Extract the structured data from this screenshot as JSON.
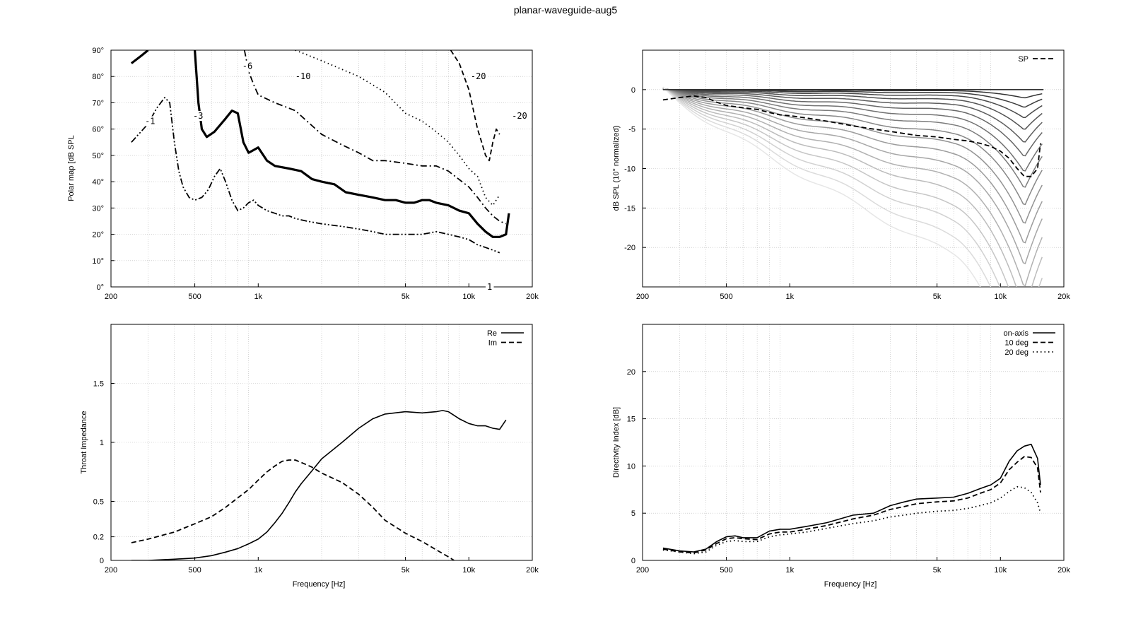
{
  "title": "planar-waveguide-aug5",
  "x_ticks": [
    "200",
    "500",
    "1k",
    "5k",
    "10k",
    "20k"
  ],
  "x_tick_values": [
    200,
    500,
    1000,
    5000,
    10000,
    20000
  ],
  "chart_data": [
    {
      "id": "polar-map",
      "type": "line",
      "ylabel": "Polar map [dB SPL",
      "xlabel": "",
      "xscale": "log",
      "xlim": [
        200,
        20000
      ],
      "ylim": [
        0,
        90
      ],
      "y_ticks": [
        "0°",
        "10°",
        "20°",
        "30°",
        "40°",
        "50°",
        "60°",
        "70°",
        "80°",
        "90°"
      ],
      "y_tick_values": [
        0,
        10,
        20,
        30,
        40,
        50,
        60,
        70,
        80,
        90
      ],
      "grid": true,
      "contour_labels": [
        {
          "text": "-1",
          "x": 290,
          "y": 63
        },
        {
          "text": "-3",
          "x": 490,
          "y": 65
        },
        {
          "text": "-6",
          "x": 840,
          "y": 84
        },
        {
          "text": "-10",
          "x": 1500,
          "y": 80
        },
        {
          "text": "-20",
          "x": 10200,
          "y": 80
        },
        {
          "text": "-20",
          "x": 16000,
          "y": 65
        },
        {
          "text": "1",
          "x": 12200,
          "y": 0
        }
      ],
      "series": [
        {
          "style": "solid-thick",
          "x": [
            250,
            280,
            300
          ],
          "y": [
            85,
            88,
            90
          ]
        },
        {
          "style": "solid-thick",
          "x": [
            500,
            520,
            540,
            570,
            620,
            700,
            750,
            800,
            850,
            900,
            950,
            1000,
            1100,
            1200,
            1400,
            1600,
            1800,
            2000,
            2300,
            2600,
            3000,
            3500,
            4000,
            4500,
            5000,
            5500,
            6000,
            6500,
            7000,
            8000,
            9000,
            10000,
            11000,
            12000,
            13000,
            14000,
            15000,
            15500
          ],
          "y": [
            90,
            70,
            60,
            57,
            59,
            64,
            67,
            66,
            55,
            51,
            52,
            53,
            48,
            46,
            45,
            44,
            41,
            40,
            39,
            36,
            35,
            34,
            33,
            33,
            32,
            32,
            33,
            33,
            32,
            31,
            29,
            28,
            24,
            21,
            19,
            19,
            20,
            28
          ]
        },
        {
          "style": "dashdot",
          "x": [
            860,
            900,
            950,
            1000,
            1200,
            1500,
            2000,
            2500,
            3000,
            3500,
            4000,
            5000,
            6000,
            7000,
            8000,
            10000,
            11000,
            12000,
            13000,
            14000,
            15000
          ],
          "y": [
            90,
            82,
            77,
            73,
            70,
            67,
            58,
            54,
            51,
            48,
            48,
            47,
            46,
            46,
            44,
            38,
            34,
            30,
            27,
            25,
            24
          ]
        },
        {
          "style": "dotted",
          "x": [
            1500,
            2000,
            3000,
            4000,
            5000,
            6000,
            7000,
            8000,
            9000,
            10000,
            11000,
            12000,
            13000,
            14000
          ],
          "y": [
            90,
            86,
            80,
            74,
            66,
            63,
            59,
            55,
            50,
            45,
            42,
            34,
            31,
            35
          ]
        },
        {
          "style": "dashed",
          "x": [
            8200,
            9000,
            10000,
            11000,
            11500,
            12000,
            12500,
            13000,
            13500,
            14000
          ],
          "y": [
            90,
            85,
            75,
            60,
            55,
            50,
            48,
            55,
            60,
            58
          ]
        },
        {
          "style": "dashdotdot",
          "x": [
            250,
            300,
            330,
            360,
            380,
            400,
            420,
            440,
            470,
            500,
            540,
            580,
            620,
            660,
            700,
            750,
            800,
            850,
            900,
            950,
            1000,
            1100,
            1200,
            1300,
            1400,
            1500,
            1700,
            2000,
            2500,
            3000,
            3500,
            4000,
            5000,
            6000,
            7000,
            8000,
            9000,
            10000,
            11000,
            12000,
            13000,
            14000
          ],
          "y": [
            55,
            62,
            68,
            72,
            70,
            55,
            44,
            38,
            34,
            33,
            34,
            37,
            42,
            45,
            40,
            33,
            29,
            30,
            32,
            33,
            31,
            29,
            28,
            27,
            27,
            26,
            25,
            24,
            23,
            22,
            21,
            20,
            20,
            20,
            21,
            20,
            19,
            18,
            16,
            15,
            14,
            13
          ]
        }
      ]
    },
    {
      "id": "normalized-spl",
      "type": "line",
      "ylabel": "dB SPL (10° normalized)",
      "xlabel": "",
      "xscale": "log",
      "xlim": [
        200,
        20000
      ],
      "ylim": [
        -25,
        5
      ],
      "y_ticks": [
        "0",
        "-5",
        "-10",
        "-15",
        "-20"
      ],
      "y_tick_values": [
        0,
        -5,
        -10,
        -15,
        -20
      ],
      "grid": true,
      "legend": {
        "position": "top-right",
        "entries": [
          "SP"
        ]
      },
      "angle_curve_count": 18,
      "series": [
        {
          "name": "SP",
          "style": "dashed",
          "x": [
            250,
            300,
            350,
            400,
            450,
            500,
            600,
            700,
            800,
            900,
            1000,
            1200,
            1500,
            2000,
            2500,
            3000,
            4000,
            5000,
            6000,
            7000,
            8000,
            9000,
            10000,
            11000,
            12000,
            13000,
            14000,
            15000,
            15500
          ],
          "y": [
            -1.3,
            -1.0,
            -0.8,
            -1.0,
            -1.6,
            -2.0,
            -2.3,
            -2.5,
            -2.9,
            -3.2,
            -3.3,
            -3.6,
            -4.0,
            -4.6,
            -5.0,
            -5.3,
            -5.8,
            -6.0,
            -6.3,
            -6.5,
            -6.8,
            -7.2,
            -7.8,
            -8.7,
            -10.0,
            -11.0,
            -11.0,
            -10.0,
            -6.8
          ]
        }
      ]
    },
    {
      "id": "throat-impedance",
      "type": "line",
      "ylabel": "Throat Impedance",
      "xlabel": "Frequency [Hz]",
      "xscale": "log",
      "xlim": [
        200,
        20000
      ],
      "ylim": [
        0,
        2
      ],
      "y_ticks": [
        "0",
        "0.2",
        "0.5",
        "1",
        "1.5"
      ],
      "y_tick_values": [
        0,
        0.2,
        0.5,
        1,
        1.5
      ],
      "grid": true,
      "legend": {
        "position": "top-right",
        "entries": [
          "Re",
          "Im"
        ]
      },
      "series": [
        {
          "name": "Re",
          "style": "solid",
          "x": [
            250,
            300,
            400,
            500,
            600,
            700,
            800,
            900,
            1000,
            1100,
            1200,
            1300,
            1400,
            1500,
            1600,
            1800,
            2000,
            2500,
            3000,
            3500,
            4000,
            5000,
            6000,
            7000,
            7500,
            8000,
            9000,
            10000,
            11000,
            12000,
            13000,
            14000,
            15000
          ],
          "y": [
            0.0,
            0.0,
            0.01,
            0.02,
            0.04,
            0.07,
            0.1,
            0.14,
            0.18,
            0.24,
            0.32,
            0.4,
            0.49,
            0.58,
            0.65,
            0.76,
            0.86,
            1.0,
            1.12,
            1.2,
            1.24,
            1.26,
            1.25,
            1.26,
            1.27,
            1.26,
            1.2,
            1.16,
            1.14,
            1.14,
            1.12,
            1.11,
            1.19
          ]
        },
        {
          "name": "Im",
          "style": "dashed",
          "x": [
            250,
            300,
            400,
            500,
            600,
            700,
            800,
            900,
            1000,
            1100,
            1200,
            1300,
            1400,
            1500,
            1600,
            1800,
            2000,
            2500,
            3000,
            3500,
            4000,
            5000,
            6000,
            7000,
            8000,
            8500
          ],
          "y": [
            0.15,
            0.18,
            0.24,
            0.31,
            0.37,
            0.45,
            0.53,
            0.6,
            0.68,
            0.75,
            0.8,
            0.84,
            0.85,
            0.85,
            0.83,
            0.79,
            0.74,
            0.66,
            0.56,
            0.45,
            0.34,
            0.23,
            0.16,
            0.09,
            0.03,
            0.0
          ]
        }
      ]
    },
    {
      "id": "directivity-index",
      "type": "line",
      "ylabel": "Directivity Index [dB]",
      "xlabel": "Frequency [Hz]",
      "xscale": "log",
      "xlim": [
        200,
        20000
      ],
      "ylim": [
        0,
        25
      ],
      "y_ticks": [
        "0",
        "5",
        "10",
        "15",
        "20"
      ],
      "y_tick_values": [
        0,
        5,
        10,
        15,
        20
      ],
      "grid": true,
      "legend": {
        "position": "top-right",
        "entries": [
          "on-axis",
          "10 deg",
          "20 deg"
        ]
      },
      "series": [
        {
          "name": "on-axis",
          "style": "solid",
          "x": [
            250,
            300,
            350,
            400,
            450,
            500,
            550,
            600,
            700,
            800,
            900,
            1000,
            1200,
            1500,
            2000,
            2500,
            3000,
            3500,
            4000,
            5000,
            6000,
            7000,
            8000,
            9000,
            10000,
            11000,
            12000,
            13000,
            14000,
            15000,
            15500
          ],
          "y": [
            1.3,
            1.0,
            0.9,
            1.2,
            2.0,
            2.5,
            2.6,
            2.4,
            2.4,
            3.1,
            3.3,
            3.3,
            3.6,
            4.0,
            4.8,
            5.0,
            5.8,
            6.2,
            6.5,
            6.6,
            6.7,
            7.1,
            7.6,
            8.0,
            8.7,
            10.5,
            11.6,
            12.1,
            12.3,
            10.8,
            8.0
          ]
        },
        {
          "name": "10 deg",
          "style": "dashed",
          "x": [
            250,
            300,
            350,
            400,
            450,
            500,
            550,
            600,
            700,
            800,
            900,
            1000,
            1200,
            1500,
            2000,
            2500,
            3000,
            3500,
            4000,
            5000,
            6000,
            7000,
            8000,
            9000,
            10000,
            11000,
            12000,
            13000,
            14000,
            15000,
            15500
          ],
          "y": [
            1.2,
            0.9,
            0.8,
            1.1,
            1.8,
            2.3,
            2.4,
            2.3,
            2.2,
            2.8,
            3.0,
            3.0,
            3.3,
            3.7,
            4.4,
            4.8,
            5.4,
            5.7,
            6.0,
            6.2,
            6.3,
            6.6,
            7.1,
            7.5,
            8.2,
            9.6,
            10.4,
            11.0,
            10.9,
            9.8,
            7.2
          ]
        },
        {
          "name": "20 deg",
          "style": "dotted",
          "x": [
            250,
            300,
            350,
            400,
            450,
            500,
            550,
            600,
            700,
            800,
            900,
            1000,
            1200,
            1500,
            2000,
            2500,
            3000,
            3500,
            4000,
            5000,
            6000,
            7000,
            8000,
            9000,
            10000,
            11000,
            12000,
            13000,
            14000,
            15000,
            15500
          ],
          "y": [
            1.1,
            0.9,
            0.7,
            0.9,
            1.6,
            2.0,
            2.1,
            2.0,
            2.0,
            2.5,
            2.7,
            2.8,
            3.0,
            3.4,
            3.9,
            4.2,
            4.6,
            4.8,
            5.0,
            5.2,
            5.3,
            5.5,
            5.8,
            6.1,
            6.6,
            7.3,
            7.8,
            7.7,
            7.2,
            6.1,
            5.0
          ]
        }
      ]
    }
  ]
}
